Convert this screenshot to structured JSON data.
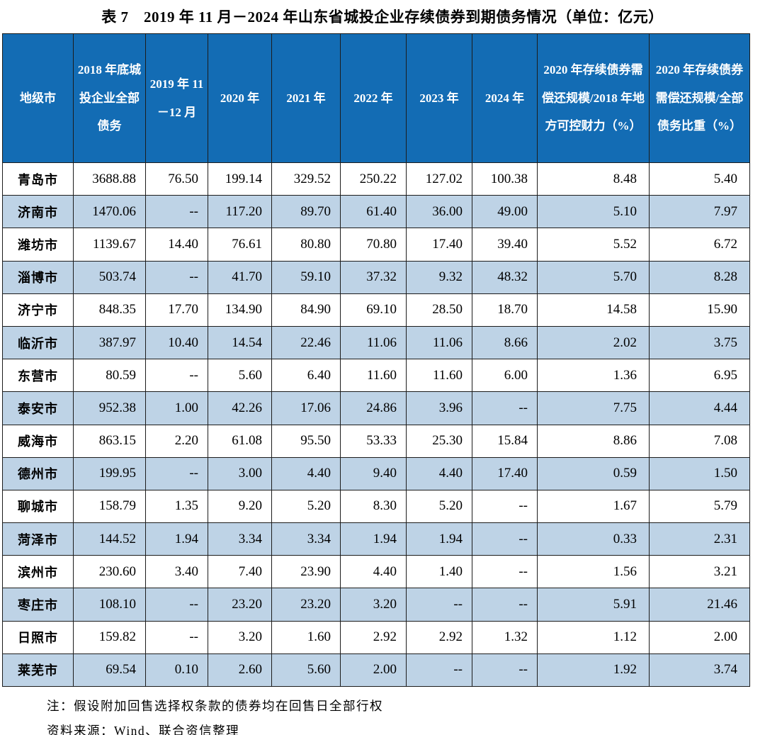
{
  "title": "表 7　2019 年 11 月－2024 年山东省城投企业存续债券到期债务情况（单位：亿元）",
  "table": {
    "headers": [
      "地级市",
      "2018 年底城投企业全部债务",
      "2019 年 11－12 月",
      "2020 年",
      "2021 年",
      "2022 年",
      "2023 年",
      "2024 年",
      "2020 年存续债券需偿还规模/2018 年地方可控财力（%）",
      "2020 年存续债券需偿还规模/全部债务比重（%）"
    ],
    "rows": [
      [
        "青岛市",
        "3688.88",
        "76.50",
        "199.14",
        "329.52",
        "250.22",
        "127.02",
        "100.38",
        "8.48",
        "5.40"
      ],
      [
        "济南市",
        "1470.06",
        "--",
        "117.20",
        "89.70",
        "61.40",
        "36.00",
        "49.00",
        "5.10",
        "7.97"
      ],
      [
        "潍坊市",
        "1139.67",
        "14.40",
        "76.61",
        "80.80",
        "70.80",
        "17.40",
        "39.40",
        "5.52",
        "6.72"
      ],
      [
        "淄博市",
        "503.74",
        "--",
        "41.70",
        "59.10",
        "37.32",
        "9.32",
        "48.32",
        "5.70",
        "8.28"
      ],
      [
        "济宁市",
        "848.35",
        "17.70",
        "134.90",
        "84.90",
        "69.10",
        "28.50",
        "18.70",
        "14.58",
        "15.90"
      ],
      [
        "临沂市",
        "387.97",
        "10.40",
        "14.54",
        "22.46",
        "11.06",
        "11.06",
        "8.66",
        "2.02",
        "3.75"
      ],
      [
        "东营市",
        "80.59",
        "--",
        "5.60",
        "6.40",
        "11.60",
        "11.60",
        "6.00",
        "1.36",
        "6.95"
      ],
      [
        "泰安市",
        "952.38",
        "1.00",
        "42.26",
        "17.06",
        "24.86",
        "3.96",
        "--",
        "7.75",
        "4.44"
      ],
      [
        "威海市",
        "863.15",
        "2.20",
        "61.08",
        "95.50",
        "53.33",
        "25.30",
        "15.84",
        "8.86",
        "7.08"
      ],
      [
        "德州市",
        "199.95",
        "--",
        "3.00",
        "4.40",
        "9.40",
        "4.40",
        "17.40",
        "0.59",
        "1.50"
      ],
      [
        "聊城市",
        "158.79",
        "1.35",
        "9.20",
        "5.20",
        "8.30",
        "5.20",
        "--",
        "1.67",
        "5.79"
      ],
      [
        "菏泽市",
        "144.52",
        "1.94",
        "3.34",
        "3.34",
        "1.94",
        "1.94",
        "--",
        "0.33",
        "2.31"
      ],
      [
        "滨州市",
        "230.60",
        "3.40",
        "7.40",
        "23.90",
        "4.40",
        "1.40",
        "--",
        "1.56",
        "3.21"
      ],
      [
        "枣庄市",
        "108.10",
        "--",
        "23.20",
        "23.20",
        "3.20",
        "--",
        "--",
        "5.91",
        "21.46"
      ],
      [
        "日照市",
        "159.82",
        "--",
        "3.20",
        "1.60",
        "2.92",
        "2.92",
        "1.32",
        "1.12",
        "2.00"
      ],
      [
        "莱芜市",
        "69.54",
        "0.10",
        "2.60",
        "5.60",
        "2.00",
        "--",
        "--",
        "1.92",
        "3.74"
      ]
    ]
  },
  "notes": {
    "note1": "注：假设附加回售选择权条款的债券均在回售日全部行权",
    "note2": "资料来源：Wind、联合资信整理"
  },
  "colors": {
    "header_bg": "#136cb4",
    "alt_row_bg": "#bed3e6",
    "border": "#1c1c1c"
  }
}
